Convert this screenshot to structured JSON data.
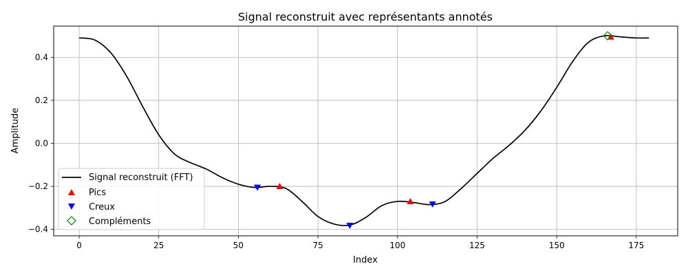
{
  "chart_data": {
    "type": "line",
    "title": "Signal reconstruit avec représentants annotés",
    "xlabel": "Index",
    "ylabel": "Amplitude",
    "xlim": [
      -8,
      188
    ],
    "ylim": [
      -0.43,
      0.545
    ],
    "xticks": [
      0,
      25,
      50,
      75,
      100,
      125,
      150,
      175
    ],
    "yticks": [
      -0.4,
      -0.2,
      0.0,
      0.2,
      0.4
    ],
    "ytick_labels": [
      "−0.4",
      "−0.2",
      "0.0",
      "0.2",
      "0.4"
    ],
    "grid": true,
    "legend_position": "lower-left",
    "series": [
      {
        "name": "Signal reconstruit (FFT)",
        "kind": "line",
        "color": "#000000",
        "x": [
          0,
          5,
          10,
          15,
          20,
          25,
          30,
          35,
          40,
          45,
          50,
          55,
          60,
          65,
          70,
          75,
          80,
          85,
          90,
          95,
          100,
          105,
          110,
          115,
          120,
          125,
          130,
          135,
          140,
          145,
          150,
          155,
          160,
          165,
          170,
          175,
          179
        ],
        "y": [
          0.49,
          0.48,
          0.42,
          0.31,
          0.17,
          0.04,
          -0.05,
          -0.09,
          -0.12,
          -0.16,
          -0.19,
          -0.205,
          -0.2,
          -0.21,
          -0.27,
          -0.34,
          -0.375,
          -0.38,
          -0.345,
          -0.29,
          -0.27,
          -0.275,
          -0.285,
          -0.27,
          -0.21,
          -0.14,
          -0.07,
          -0.01,
          0.06,
          0.15,
          0.26,
          0.38,
          0.47,
          0.5,
          0.495,
          0.49,
          0.49
        ]
      },
      {
        "name": "Pics",
        "kind": "marker",
        "marker": "triangle-up",
        "color": "#ff0000",
        "x": [
          63,
          104,
          167
        ],
        "y": [
          -0.2,
          -0.27,
          0.495
        ]
      },
      {
        "name": "Creux",
        "kind": "marker",
        "marker": "triangle-down",
        "color": "#0000ff",
        "x": [
          56,
          85,
          111
        ],
        "y": [
          -0.205,
          -0.382,
          -0.283
        ]
      },
      {
        "name": "Compléments",
        "kind": "marker",
        "marker": "diamond-open",
        "color": "#008000",
        "x": [
          166
        ],
        "y": [
          0.5
        ]
      }
    ]
  }
}
